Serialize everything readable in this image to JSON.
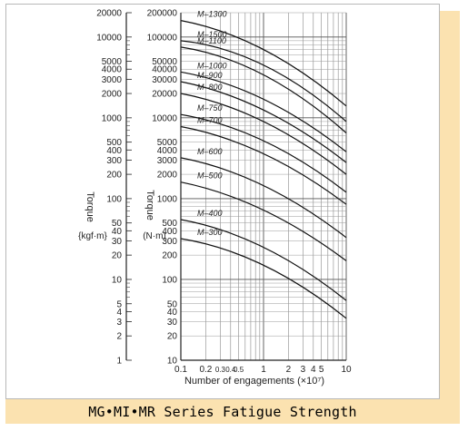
{
  "caption": "MG•MI•MR Series Fatigue Strength",
  "chart_data": {
    "type": "line",
    "title": "",
    "xlabel": "Number of engagements (×10⁷)",
    "xscale": "log",
    "xlim": [
      0.1,
      10
    ],
    "x_ticks": [
      0.1,
      0.2,
      0.3,
      0.4,
      0.5,
      1,
      2,
      3,
      4,
      5,
      10
    ],
    "x_tick_labels": [
      "0.1",
      "0.2",
      "0.3",
      "0.4",
      "0.5",
      "1",
      "2",
      "3",
      "4",
      "5",
      "10"
    ],
    "y_axes": [
      {
        "label": "Torque",
        "unit": "{kgf·m}",
        "scale": "log",
        "range": [
          1,
          20000
        ],
        "ticks": [
          1,
          2,
          3,
          4,
          5,
          10,
          20,
          30,
          40,
          50,
          100,
          200,
          300,
          400,
          500,
          1000,
          2000,
          3000,
          4000,
          5000,
          10000,
          20000
        ]
      },
      {
        "label": "Torque",
        "unit": "(N·m)",
        "scale": "log",
        "range": [
          10,
          200000
        ],
        "ticks": [
          10,
          20,
          30,
          40,
          50,
          100,
          200,
          300,
          400,
          500,
          1000,
          2000,
          3000,
          4000,
          5000,
          10000,
          20000,
          30000,
          40000,
          50000,
          100000,
          200000
        ]
      }
    ],
    "grid": true,
    "series": [
      {
        "name": "M–1300",
        "x": [
          0.1,
          1,
          10
        ],
        "y": [
          160000,
          70000,
          14000
        ]
      },
      {
        "name": "M–1500",
        "x": [
          0.1,
          1,
          10
        ],
        "y": [
          90000,
          45000,
          9000
        ]
      },
      {
        "name": "M–1100",
        "x": [
          0.1,
          1,
          10
        ],
        "y": [
          75000,
          34000,
          6500
        ]
      },
      {
        "name": "M–1000",
        "x": [
          0.1,
          1,
          10
        ],
        "y": [
          37000,
          17000,
          3800
        ]
      },
      {
        "name": "M–900",
        "x": [
          0.1,
          1,
          10
        ],
        "y": [
          28000,
          12500,
          2800
        ]
      },
      {
        "name": "M–800",
        "x": [
          0.1,
          1,
          10
        ],
        "y": [
          20000,
          9000,
          2000
        ]
      },
      {
        "name": "M–750",
        "x": [
          0.1,
          1,
          10
        ],
        "y": [
          11000,
          5200,
          1200
        ]
      },
      {
        "name": "M–700",
        "x": [
          0.1,
          1,
          10
        ],
        "y": [
          7800,
          3600,
          850
        ]
      },
      {
        "name": "M–600",
        "x": [
          0.1,
          1,
          10
        ],
        "y": [
          3200,
          1450,
          330
        ]
      },
      {
        "name": "M–500",
        "x": [
          0.1,
          1,
          10
        ],
        "y": [
          1600,
          720,
          170
        ]
      },
      {
        "name": "M–400",
        "x": [
          0.1,
          1,
          10
        ],
        "y": [
          550,
          250,
          55
        ]
      },
      {
        "name": "M–300",
        "x": [
          0.1,
          1,
          10
        ],
        "y": [
          320,
          150,
          33
        ]
      }
    ]
  }
}
